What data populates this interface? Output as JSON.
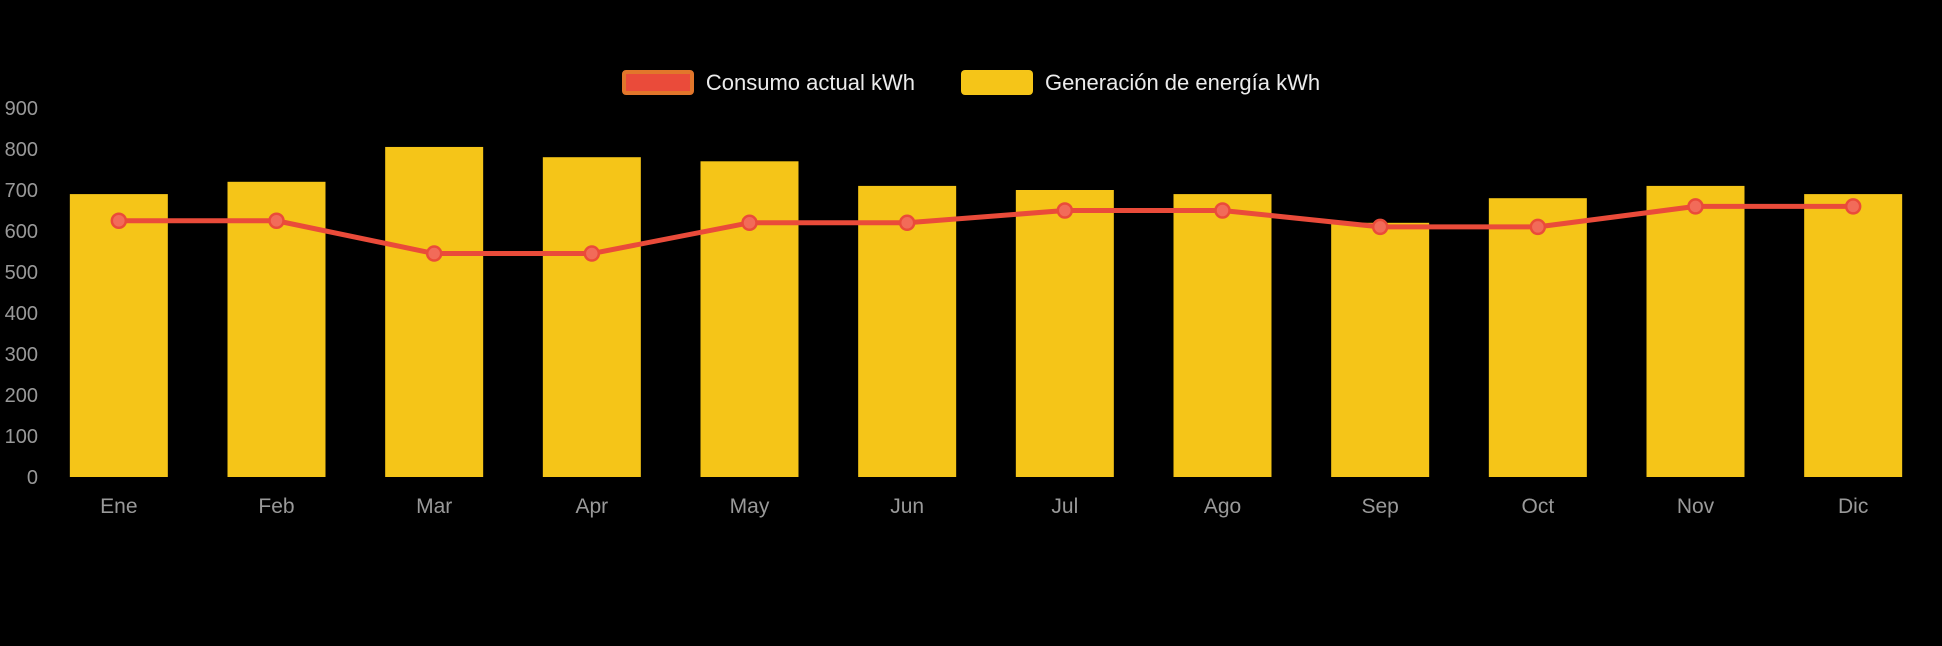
{
  "chart_data": {
    "type": "bar",
    "subtype": "bar+line-combo",
    "categories": [
      "Ene",
      "Feb",
      "Mar",
      "Apr",
      "May",
      "Jun",
      "Jul",
      "Ago",
      "Sep",
      "Oct",
      "Nov",
      "Dic"
    ],
    "series": [
      {
        "name": "Consumo actual kWh",
        "type": "line",
        "values": [
          625,
          625,
          545,
          545,
          620,
          620,
          650,
          650,
          610,
          610,
          660,
          660
        ]
      },
      {
        "name": "Generación de energía kWh",
        "type": "bar",
        "values": [
          690,
          720,
          805,
          780,
          770,
          710,
          700,
          690,
          620,
          680,
          710,
          690
        ]
      }
    ],
    "title": "",
    "xlabel": "",
    "ylabel": "",
    "ylim": [
      0,
      900
    ],
    "ytick_interval": 100,
    "yticks": [
      0,
      100,
      200,
      300,
      400,
      500,
      600,
      700,
      800,
      900
    ],
    "grid": false,
    "legend_position": "top-center",
    "background": "dark"
  },
  "legend": {
    "items": [
      {
        "label": "Consumo actual kWh",
        "swatch": "line"
      },
      {
        "label": "Generación de energía kWh",
        "swatch": "bar"
      }
    ]
  },
  "colors": {
    "background": "#000000",
    "bar": "#F5C518",
    "line": "#EA4B3A",
    "marker_fill": "#F26B59",
    "legend_line_border": "#E2762B",
    "axis_text": "#999999",
    "legend_text": "#ECECEC"
  }
}
